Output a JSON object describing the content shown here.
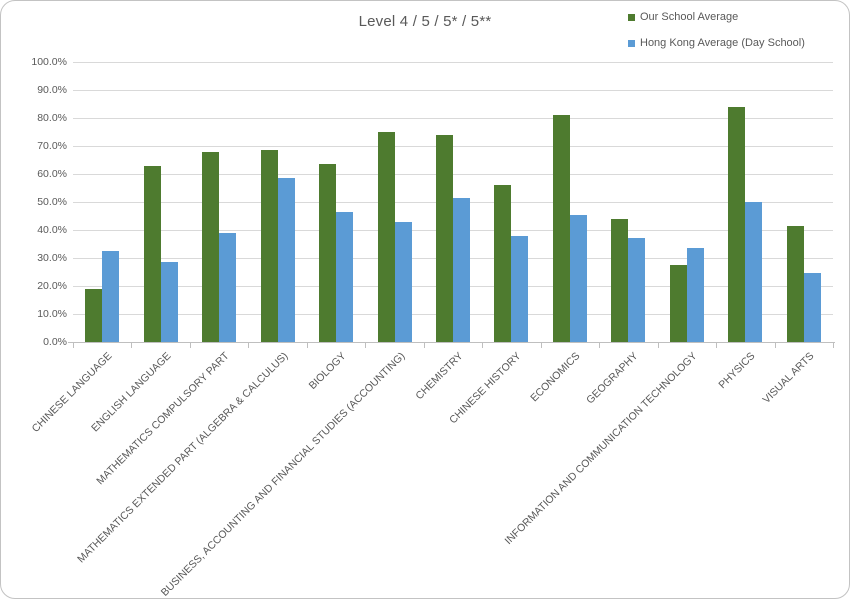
{
  "chart_data": {
    "type": "bar",
    "title": "Level 4 / 5 / 5* / 5**",
    "xlabel": "",
    "ylabel": "",
    "ylim": [
      0,
      100
    ],
    "y_tick_step": 10,
    "y_tick_labels": [
      "0.0%",
      "10.0%",
      "20.0%",
      "30.0%",
      "40.0%",
      "50.0%",
      "60.0%",
      "70.0%",
      "80.0%",
      "90.0%",
      "100.0%"
    ],
    "grid": true,
    "legend_position": "top-right",
    "categories": [
      "CHINESE LANGUAGE",
      "ENGLISH LANGUAGE",
      "MATHEMATICS COMPULSORY PART",
      "MATHEMATICS EXTENDED PART (ALGEBRA & CALCULUS)",
      "BIOLOGY",
      "BUSINESS, ACCOUNTING AND FINANCIAL STUDIES (ACCOUNTING)",
      "CHEMISTRY",
      "CHINESE HISTORY",
      "ECONOMICS",
      "GEOGRAPHY",
      "INFORMATION AND COMMUNICATION TECHNOLOGY",
      "PHYSICS",
      "VISUAL ARTS"
    ],
    "series": [
      {
        "name": "Our School Average",
        "color": "#4e7b2f",
        "values": [
          19.0,
          63.0,
          68.0,
          68.5,
          63.5,
          75.0,
          74.0,
          56.0,
          81.0,
          44.0,
          27.5,
          84.0,
          41.5
        ]
      },
      {
        "name": "Hong Kong Average (Day School)",
        "color": "#5b9bd5",
        "values": [
          32.5,
          28.5,
          39.0,
          58.5,
          46.5,
          43.0,
          51.5,
          38.0,
          45.5,
          37.0,
          33.5,
          50.0,
          24.5
        ]
      }
    ],
    "colors": {
      "gridline": "#d9d9d9",
      "axis": "#bfbfbf",
      "text": "#595959"
    }
  }
}
